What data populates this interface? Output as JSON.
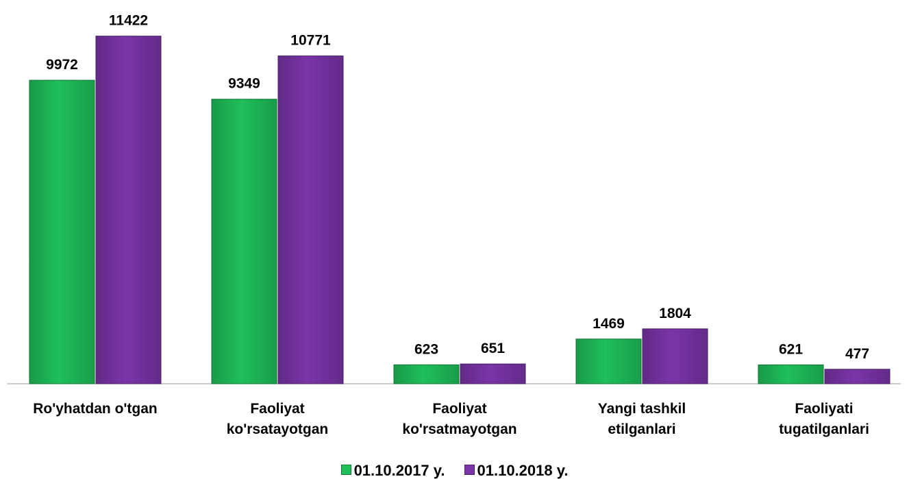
{
  "chart_data": {
    "type": "bar",
    "categories": [
      "Ro'yhatdan o'tgan",
      "Faoliyat\nko'rsatayotgan",
      "Faoliyat\nko'rsatmayotgan",
      "Yangi tashkil\netilganlari",
      "Faoliyati\ntugatilganlari"
    ],
    "series": [
      {
        "name": "01.10.2017 y.",
        "color": "#1fbf5a",
        "values": [
          9972,
          9349,
          623,
          1469,
          621
        ]
      },
      {
        "name": "01.10.2018 y.",
        "color": "#7a35a8",
        "values": [
          11422,
          10771,
          651,
          1804,
          477
        ]
      }
    ],
    "ylim": [
      0,
      12000
    ],
    "legend": "bottom"
  }
}
